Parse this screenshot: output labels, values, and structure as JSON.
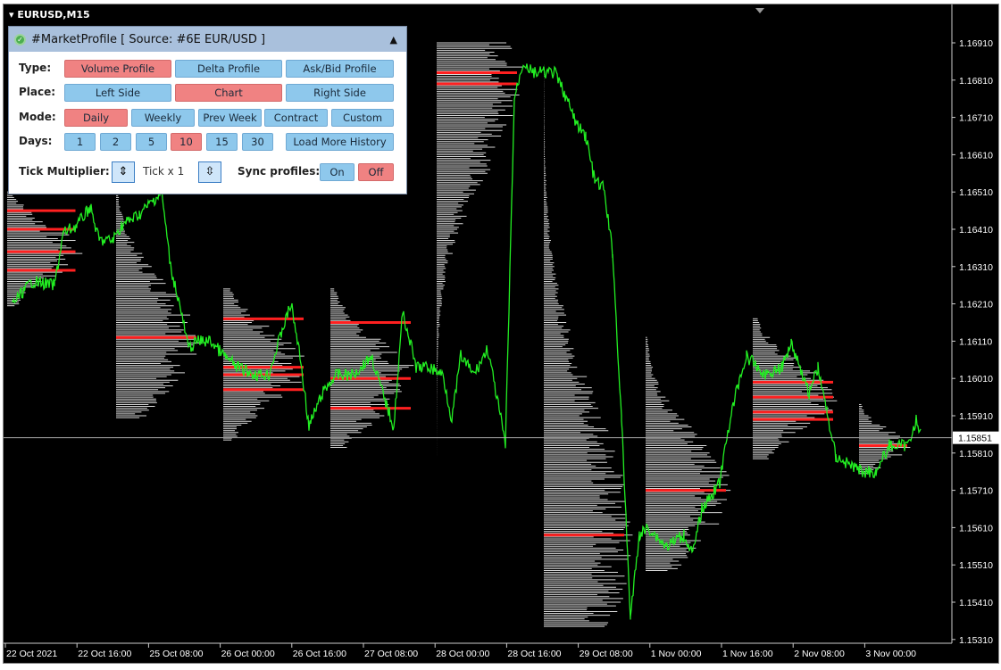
{
  "window": {
    "symbol": "EURUSD,M15"
  },
  "panel": {
    "title": "#MarketProfile [ Source: #6E EUR/USD ]",
    "collapse_icon": "triangle-up",
    "type": {
      "label": "Type:",
      "options": [
        "Volume Profile",
        "Delta Profile",
        "Ask/Bid Profile"
      ],
      "selected": "Volume Profile"
    },
    "place": {
      "label": "Place:",
      "options": [
        "Left Side",
        "Chart",
        "Right Side"
      ],
      "selected": "Chart"
    },
    "mode": {
      "label": "Mode:",
      "options": [
        "Daily",
        "Weekly",
        "Prev Week",
        "Contract",
        "Custom"
      ],
      "selected": "Daily"
    },
    "days": {
      "label": "Days:",
      "options": [
        "1",
        "2",
        "5",
        "10",
        "15",
        "30"
      ],
      "selected": "10",
      "load_more": "Load More History"
    },
    "tick": {
      "label": "Tick Multiplier:",
      "value": "Tick x 1"
    },
    "sync": {
      "label": "Sync profiles:",
      "options": [
        "On",
        "Off"
      ],
      "selected": "Off"
    },
    "colors": {
      "selected": "#f08282",
      "normal": "#8ec8ec"
    }
  },
  "chart_data": {
    "type": "line",
    "price_axis": {
      "ticks": [
        "1.16910",
        "1.16810",
        "1.16710",
        "1.16610",
        "1.16510",
        "1.16410",
        "1.16310",
        "1.16210",
        "1.16110",
        "1.16010",
        "1.15910",
        "1.15810",
        "1.15710",
        "1.15610",
        "1.15510",
        "1.15410",
        "1.15310"
      ],
      "range": [
        1.1531,
        1.1691
      ],
      "current_price": "1.15851"
    },
    "time_axis": {
      "ticks": [
        "22 Oct 2021",
        "22 Oct 16:00",
        "25 Oct 08:00",
        "26 Oct 00:00",
        "26 Oct 16:00",
        "27 Oct 08:00",
        "28 Oct 00:00",
        "28 Oct 16:00",
        "29 Oct 08:00",
        "1 Nov 00:00",
        "1 Nov 16:00",
        "2 Nov 08:00",
        "3 Nov 00:00"
      ]
    },
    "price_path": [
      [
        6,
        1.1621
      ],
      [
        24,
        1.1627
      ],
      [
        44,
        1.1626
      ],
      [
        52,
        1.164
      ],
      [
        64,
        1.1642
      ],
      [
        76,
        1.1647
      ],
      [
        84,
        1.1638
      ],
      [
        96,
        1.1638
      ],
      [
        104,
        1.1642
      ],
      [
        120,
        1.1645
      ],
      [
        140,
        1.1651
      ],
      [
        148,
        1.1631
      ],
      [
        156,
        1.1621
      ],
      [
        164,
        1.1609
      ],
      [
        172,
        1.1611
      ],
      [
        184,
        1.1611
      ],
      [
        196,
        1.1607
      ],
      [
        208,
        1.1604
      ],
      [
        224,
        1.1602
      ],
      [
        236,
        1.1602
      ],
      [
        248,
        1.1614
      ],
      [
        256,
        1.1621
      ],
      [
        264,
        1.1607
      ],
      [
        272,
        1.1588
      ],
      [
        284,
        1.1597
      ],
      [
        296,
        1.1602
      ],
      [
        312,
        1.1602
      ],
      [
        328,
        1.1607
      ],
      [
        336,
        1.1599
      ],
      [
        348,
        1.1588
      ],
      [
        356,
        1.1619
      ],
      [
        368,
        1.1604
      ],
      [
        380,
        1.1604
      ],
      [
        392,
        1.1602
      ],
      [
        400,
        1.159
      ],
      [
        408,
        1.1607
      ],
      [
        420,
        1.1602
      ],
      [
        432,
        1.1609
      ],
      [
        444,
        1.159
      ],
      [
        448,
        1.1583
      ],
      [
        456,
        1.1676
      ],
      [
        464,
        1.1686
      ],
      [
        472,
        1.1683
      ],
      [
        480,
        1.1683
      ],
      [
        492,
        1.1683
      ],
      [
        500,
        1.1678
      ],
      [
        512,
        1.1669
      ],
      [
        520,
        1.1666
      ],
      [
        528,
        1.1654
      ],
      [
        536,
        1.1652
      ],
      [
        544,
        1.1635
      ],
      [
        552,
        1.159
      ],
      [
        560,
        1.1537
      ],
      [
        568,
        1.1559
      ],
      [
        576,
        1.1561
      ],
      [
        592,
        1.1556
      ],
      [
        608,
        1.1559
      ],
      [
        616,
        1.1554
      ],
      [
        624,
        1.1566
      ],
      [
        640,
        1.1573
      ],
      [
        648,
        1.1588
      ],
      [
        656,
        1.1599
      ],
      [
        664,
        1.1607
      ],
      [
        680,
        1.1602
      ],
      [
        696,
        1.1604
      ],
      [
        704,
        1.1611
      ],
      [
        720,
        1.1597
      ],
      [
        728,
        1.1604
      ],
      [
        736,
        1.1592
      ],
      [
        744,
        1.158
      ],
      [
        756,
        1.1578
      ],
      [
        768,
        1.1576
      ],
      [
        780,
        1.1576
      ],
      [
        792,
        1.1583
      ],
      [
        808,
        1.1583
      ],
      [
        816,
        1.159
      ],
      [
        820,
        1.1586
      ]
    ],
    "profiles": [
      {
        "session": "22 Oct",
        "high": 1.1651,
        "low": 1.162,
        "poc": 1.1635,
        "highlights": [
          1.1646,
          1.1641,
          1.1635,
          1.163
        ]
      },
      {
        "session": "25 Oct",
        "high": 1.1651,
        "low": 1.159,
        "poc": 1.1612
      },
      {
        "session": "26 Oct",
        "high": 1.1625,
        "low": 1.1584,
        "poc": 1.1604,
        "highlights": [
          1.1617,
          1.1604,
          1.1602,
          1.1598
        ]
      },
      {
        "session": "27 Oct",
        "high": 1.1625,
        "low": 1.1582,
        "poc": 1.1601,
        "highlights": [
          1.1616,
          1.1601,
          1.1593
        ]
      },
      {
        "session": "28 Oct",
        "high": 1.1691,
        "low": 1.158,
        "poc": 1.1683,
        "highlights": [
          1.1683,
          1.168
        ]
      },
      {
        "session": "29 Oct",
        "high": 1.1685,
        "low": 1.1534,
        "poc": 1.1559
      },
      {
        "session": "1 Nov",
        "high": 1.1612,
        "low": 1.1549,
        "poc": 1.1571
      },
      {
        "session": "2 Nov",
        "high": 1.1617,
        "low": 1.1579,
        "poc": 1.1596,
        "highlights": [
          1.16,
          1.1596,
          1.1592,
          1.159
        ]
      },
      {
        "session": "3 Nov",
        "high": 1.1594,
        "low": 1.1575,
        "poc": 1.1583
      }
    ]
  }
}
